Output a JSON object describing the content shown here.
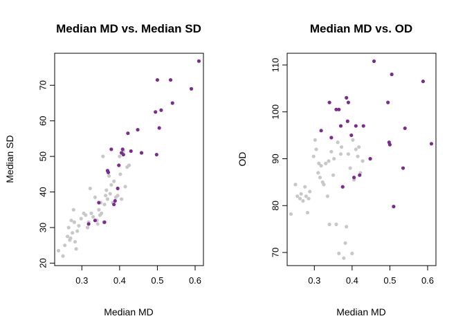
{
  "colors": {
    "gray": "#c8c8c8",
    "purple": "#7b2d8b"
  },
  "chart_data": [
    {
      "type": "scatter",
      "title": "Median MD vs. Median SD",
      "xlabel": "Median MD",
      "ylabel": "Median SD",
      "xlim": [
        0.228,
        0.622
      ],
      "ylim": [
        19.3,
        79.0
      ],
      "xticks": [
        0.3,
        0.4,
        0.5,
        0.6
      ],
      "xtick_labels": [
        "0.3",
        "0.4",
        "0.5",
        "0.6"
      ],
      "yticks": [
        20,
        30,
        40,
        50,
        60,
        70
      ],
      "ytick_labels": [
        "20",
        "30",
        "40",
        "50",
        "60",
        "70"
      ],
      "grid": false,
      "series": [
        {
          "color_key": "gray",
          "points": [
            [
              0.238,
              23.5
            ],
            [
              0.25,
              22.0
            ],
            [
              0.255,
              25.0
            ],
            [
              0.262,
              27.5
            ],
            [
              0.265,
              30.0
            ],
            [
              0.268,
              26.5
            ],
            [
              0.27,
              27.0
            ],
            [
              0.272,
              32.0
            ],
            [
              0.275,
              28.5
            ],
            [
              0.278,
              35.0
            ],
            [
              0.28,
              31.5
            ],
            [
              0.282,
              26.0
            ],
            [
              0.285,
              24.0
            ],
            [
              0.288,
              29.0
            ],
            [
              0.292,
              30.5
            ],
            [
              0.298,
              32.5
            ],
            [
              0.305,
              34.0
            ],
            [
              0.31,
              33.5
            ],
            [
              0.315,
              30.0
            ],
            [
              0.318,
              31.5
            ],
            [
              0.322,
              41.0
            ],
            [
              0.325,
              34.0
            ],
            [
              0.33,
              33.0
            ],
            [
              0.335,
              38.5
            ],
            [
              0.34,
              32.0
            ],
            [
              0.342,
              31.0
            ],
            [
              0.345,
              35.0
            ],
            [
              0.348,
              33.5
            ],
            [
              0.35,
              37.0
            ],
            [
              0.352,
              34.0
            ],
            [
              0.356,
              50.0
            ],
            [
              0.358,
              31.5
            ],
            [
              0.36,
              36.5
            ],
            [
              0.363,
              39.0
            ],
            [
              0.365,
              40.5
            ],
            [
              0.368,
              38.0
            ],
            [
              0.372,
              44.5
            ],
            [
              0.375,
              39.5
            ],
            [
              0.378,
              42.0
            ],
            [
              0.382,
              37.0
            ],
            [
              0.385,
              43.0
            ],
            [
              0.39,
              38.5
            ],
            [
              0.395,
              39.0
            ],
            [
              0.4,
              50.0
            ],
            [
              0.402,
              45.0
            ],
            [
              0.405,
              38.0
            ],
            [
              0.41,
              51.5
            ],
            [
              0.415,
              41.5
            ],
            [
              0.42,
              47.0
            ],
            [
              0.425,
              47.5
            ]
          ]
        },
        {
          "color_key": "purple",
          "points": [
            [
              0.318,
              31.0
            ],
            [
              0.335,
              32.0
            ],
            [
              0.345,
              37.0
            ],
            [
              0.36,
              31.5
            ],
            [
              0.368,
              46.0
            ],
            [
              0.37,
              45.5
            ],
            [
              0.378,
              52.0
            ],
            [
              0.385,
              36.5
            ],
            [
              0.388,
              37.5
            ],
            [
              0.395,
              41.0
            ],
            [
              0.398,
              47.5
            ],
            [
              0.405,
              51.0
            ],
            [
              0.408,
              52.0
            ],
            [
              0.41,
              50.5
            ],
            [
              0.422,
              56.5
            ],
            [
              0.43,
              51.5
            ],
            [
              0.448,
              57.5
            ],
            [
              0.458,
              51.0
            ],
            [
              0.495,
              62.5
            ],
            [
              0.498,
              50.5
            ],
            [
              0.5,
              71.5
            ],
            [
              0.505,
              58.0
            ],
            [
              0.51,
              63.0
            ],
            [
              0.535,
              71.5
            ],
            [
              0.54,
              65.0
            ],
            [
              0.59,
              69.0
            ],
            [
              0.61,
              76.8
            ]
          ]
        }
      ]
    },
    {
      "type": "scatter",
      "title": "Median MD vs. OD",
      "xlabel": "Median MD",
      "ylabel": "OD",
      "xlim": [
        0.228,
        0.622
      ],
      "ylim": [
        67.2,
        112.5
      ],
      "xticks": [
        0.3,
        0.4,
        0.5,
        0.6
      ],
      "xtick_labels": [
        "0.3",
        "0.4",
        "0.5",
        "0.6"
      ],
      "yticks": [
        70,
        80,
        90,
        100,
        110
      ],
      "ytick_labels": [
        "70",
        "80",
        "90",
        "100",
        "110"
      ],
      "grid": false,
      "series": [
        {
          "color_key": "gray",
          "points": [
            [
              0.238,
              78.2
            ],
            [
              0.25,
              84.5
            ],
            [
              0.255,
              82.0
            ],
            [
              0.262,
              81.5
            ],
            [
              0.265,
              82.5
            ],
            [
              0.27,
              81.0
            ],
            [
              0.275,
              84.0
            ],
            [
              0.278,
              82.0
            ],
            [
              0.282,
              78.5
            ],
            [
              0.285,
              81.5
            ],
            [
              0.288,
              83.0
            ],
            [
              0.298,
              90.5
            ],
            [
              0.302,
              94.0
            ],
            [
              0.305,
              92.0
            ],
            [
              0.31,
              87.0
            ],
            [
              0.312,
              89.0
            ],
            [
              0.315,
              86.0
            ],
            [
              0.318,
              88.5
            ],
            [
              0.322,
              85.0
            ],
            [
              0.325,
              84.5
            ],
            [
              0.33,
              89.0
            ],
            [
              0.335,
              82.0
            ],
            [
              0.338,
              89.5
            ],
            [
              0.34,
              76.0
            ],
            [
              0.345,
              91.5
            ],
            [
              0.35,
              86.5
            ],
            [
              0.352,
              90.0
            ],
            [
              0.358,
              76.0
            ],
            [
              0.362,
              93.5
            ],
            [
              0.365,
              69.8
            ],
            [
              0.37,
              91.0
            ],
            [
              0.372,
              92.5
            ],
            [
              0.378,
              68.8
            ],
            [
              0.382,
              72.0
            ],
            [
              0.385,
              75.5
            ],
            [
              0.39,
              91.0
            ],
            [
              0.395,
              88.0
            ],
            [
              0.4,
              69.8
            ],
            [
              0.402,
              94.0
            ],
            [
              0.405,
              85.5
            ],
            [
              0.41,
              92.0
            ],
            [
              0.415,
              90.5
            ],
            [
              0.418,
              92.5
            ],
            [
              0.422,
              87.0
            ],
            [
              0.428,
              89.5
            ]
          ]
        },
        {
          "color_key": "purple",
          "points": [
            [
              0.318,
              96.0
            ],
            [
              0.34,
              102.0
            ],
            [
              0.345,
              94.5
            ],
            [
              0.358,
              100.5
            ],
            [
              0.365,
              100.5
            ],
            [
              0.37,
              97.0
            ],
            [
              0.375,
              84.0
            ],
            [
              0.385,
              103.0
            ],
            [
              0.388,
              98.0
            ],
            [
              0.39,
              102.0
            ],
            [
              0.398,
              95.0
            ],
            [
              0.405,
              86.0
            ],
            [
              0.41,
              97.0
            ],
            [
              0.42,
              86.5
            ],
            [
              0.43,
              97.0
            ],
            [
              0.448,
              90.0
            ],
            [
              0.458,
              110.8
            ],
            [
              0.495,
              102.0
            ],
            [
              0.498,
              93.5
            ],
            [
              0.5,
              93.0
            ],
            [
              0.505,
              108.0
            ],
            [
              0.51,
              79.8
            ],
            [
              0.535,
              88.0
            ],
            [
              0.54,
              96.5
            ],
            [
              0.588,
              106.5
            ],
            [
              0.61,
              93.2
            ]
          ]
        }
      ]
    }
  ]
}
